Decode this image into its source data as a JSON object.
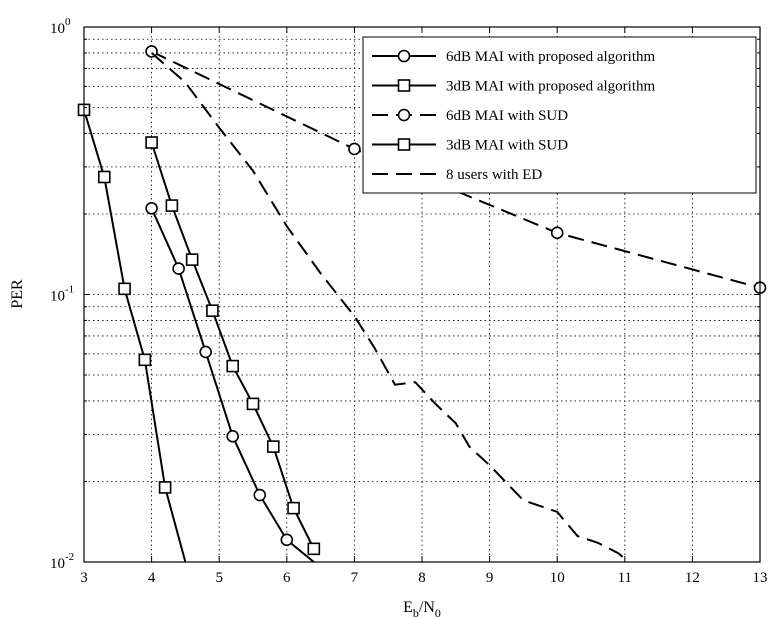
{
  "chart_data": {
    "type": "line",
    "title": "",
    "xlabel": "E_b/N_0",
    "ylabel": "PER",
    "xlim": [
      3,
      13
    ],
    "ylim": [
      0.01,
      1
    ],
    "yscale": "log",
    "grid": true,
    "legend_position": "top-right",
    "x_ticks": [
      "3",
      "4",
      "5",
      "6",
      "7",
      "8",
      "9",
      "10",
      "11",
      "12",
      "13"
    ],
    "y_ticks": [
      {
        "base": "10",
        "exp": "-2"
      },
      {
        "base": "10",
        "exp": "-1"
      },
      {
        "base": "10",
        "exp": "0"
      }
    ],
    "series": [
      {
        "name": "6dB MAI with proposed algorithm",
        "marker": "circle",
        "dash": "solid",
        "x": [
          4.0,
          4.4,
          4.8,
          5.2,
          5.6,
          6.0,
          6.4
        ],
        "y": [
          0.21,
          0.125,
          0.061,
          0.0295,
          0.0178,
          0.0121,
          0.0095
        ]
      },
      {
        "name": "3dB MAI with proposed algorithm",
        "marker": "square",
        "dash": "solid",
        "x": [
          4.0,
          4.3,
          4.6,
          4.9,
          5.2,
          5.5,
          5.8,
          6.1,
          6.4
        ],
        "y": [
          0.37,
          0.215,
          0.135,
          0.087,
          0.054,
          0.039,
          0.027,
          0.0159,
          0.0112
        ]
      },
      {
        "name": "6dB MAI with SUD",
        "marker": "circle",
        "dash": "dashed",
        "x": [
          4.0,
          7.0,
          10.0,
          13.0
        ],
        "y": [
          0.81,
          0.35,
          0.17,
          0.106
        ]
      },
      {
        "name": "3dB MAI with SUD",
        "marker": "square",
        "dash": "solid",
        "x": [
          3.0,
          3.3,
          3.6,
          3.9,
          4.2,
          4.5
        ],
        "y": [
          0.49,
          0.275,
          0.105,
          0.057,
          0.019,
          0.0095
        ]
      },
      {
        "name": "8 users with ED",
        "marker": "none",
        "dash": "dashed",
        "x": [
          4.0,
          4.5,
          5.0,
          5.5,
          6.0,
          6.5,
          7.0,
          7.3,
          7.6,
          7.9,
          8.2,
          8.5,
          8.7,
          9.0,
          9.5,
          10.0,
          10.3,
          10.6,
          10.9,
          11.0
        ],
        "y": [
          0.8,
          0.62,
          0.42,
          0.29,
          0.18,
          0.12,
          0.083,
          0.063,
          0.046,
          0.047,
          0.039,
          0.033,
          0.027,
          0.023,
          0.017,
          0.0154,
          0.0125,
          0.0118,
          0.0108,
          0.0103
        ]
      }
    ]
  }
}
